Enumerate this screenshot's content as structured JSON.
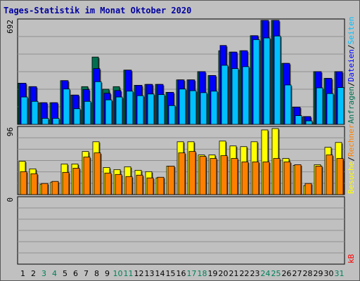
{
  "chart_data": {
    "type": "bar",
    "title": "Tages-Statistik im Monat Oktober 2020",
    "x": [
      1,
      2,
      3,
      4,
      5,
      6,
      7,
      8,
      9,
      10,
      11,
      12,
      13,
      14,
      15,
      16,
      17,
      18,
      19,
      20,
      21,
      22,
      23,
      24,
      25,
      26,
      27,
      28,
      29,
      30,
      31
    ],
    "weekend_days": [
      3,
      4,
      10,
      11,
      17,
      18,
      24,
      25,
      31
    ],
    "panels": [
      {
        "id": "top",
        "scale_label": "692",
        "ylim": [
          0,
          692
        ],
        "axis_legend": [
          {
            "text": "Anfragen",
            "color": "#007050"
          },
          {
            "text": "/",
            "color": "#000000"
          },
          {
            "text": "Dateien",
            "color": "#0000ff"
          },
          {
            "text": "/",
            "color": "#000000"
          },
          {
            "text": "Seiten",
            "color": "#00c0ff"
          }
        ],
        "series": [
          {
            "name": "Anfragen",
            "color": "#007050",
            "values": [
              274,
              251,
              144,
              144,
              291,
              195,
              251,
              448,
              234,
              251,
              361,
              260,
              266,
              266,
              213,
              296,
              296,
              351,
              325,
              490,
              481,
              490,
              590,
              692,
              692,
              406,
              115,
              52,
              351,
              306,
              351
            ]
          },
          {
            "name": "Dateien",
            "color": "#0000ff",
            "values": [
              274,
              251,
              144,
              144,
              291,
              195,
              232,
              371,
              207,
              225,
              361,
              260,
              266,
              266,
              213,
              296,
              296,
              351,
              325,
              525,
              481,
              490,
              590,
              692,
              692,
              406,
              115,
              52,
              351,
              306,
              351
            ]
          },
          {
            "name": "Seiten",
            "color": "#00c0ff",
            "values": [
              182,
              153,
              40,
              40,
              235,
              104,
              153,
              284,
              163,
              182,
              221,
              191,
              202,
              198,
              125,
              235,
              224,
              211,
              221,
              393,
              371,
              384,
              564,
              575,
              588,
              262,
              58,
              23,
              243,
              205,
              245
            ]
          }
        ]
      },
      {
        "id": "middle",
        "scale_label": "96",
        "ylim": [
          0,
          96
        ],
        "axis_legend": [
          {
            "text": "Besuche",
            "color": "#ffff00"
          },
          {
            "text": "/",
            "color": "#000000"
          },
          {
            "text": "Rechner",
            "color": "#ff8000"
          }
        ],
        "series": [
          {
            "name": "Besuche",
            "color": "#ffff00",
            "values": [
              48,
              37,
              15,
              18,
              44,
              44,
              62,
              76,
              39,
              36,
              40,
              35,
              33,
              24,
              41,
              76,
              76,
              57,
              57,
              77,
              70,
              69,
              76,
              93,
              95,
              52,
              42,
              13,
              43,
              68,
              75
            ]
          },
          {
            "name": "Rechner",
            "color": "#ff8000",
            "values": [
              33,
              30,
              16,
              19,
              32,
              38,
              54,
              60,
              31,
              29,
              26,
              28,
              24,
              25,
              41,
              60,
              62,
              55,
              52,
              56,
              52,
              47,
              47,
              47,
              52,
              47,
              43,
              16,
              41,
              57,
              52
            ]
          }
        ]
      },
      {
        "id": "bottom",
        "scale_label": "0",
        "ylim": [
          0,
          1
        ],
        "axis_legend": [
          {
            "text": "kB",
            "color": "#ff0000"
          }
        ],
        "series": [
          {
            "name": "kB",
            "color": "#ff0000",
            "values": [
              0,
              0,
              0,
              0,
              0,
              0,
              0,
              0,
              0,
              0,
              0,
              0,
              0,
              0,
              0,
              0,
              0,
              0,
              0,
              0,
              0,
              0,
              0,
              0,
              0,
              0,
              0,
              0,
              0,
              0,
              0
            ]
          }
        ]
      }
    ]
  }
}
